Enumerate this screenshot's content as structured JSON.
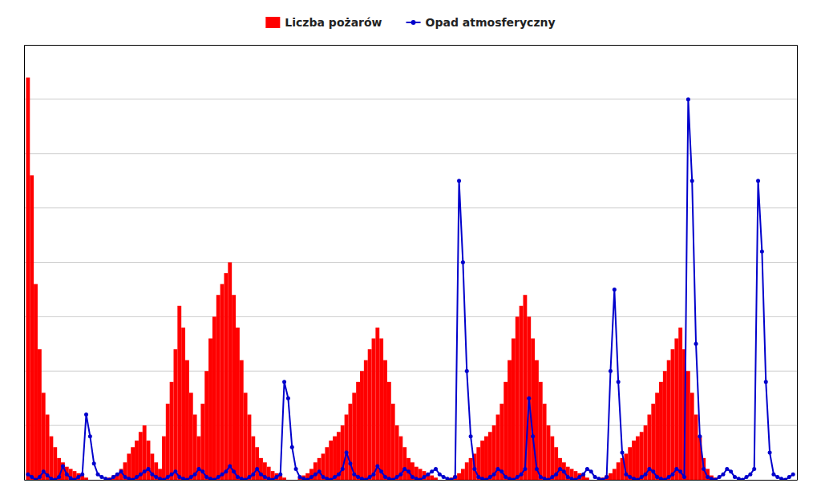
{
  "chart_data": {
    "type": "bar",
    "categories": [
      null,
      null,
      null,
      null,
      null,
      null,
      null,
      null,
      null,
      null,
      null,
      null,
      null,
      null,
      null,
      null,
      null,
      null,
      null,
      null,
      null,
      null,
      null,
      null,
      null,
      null,
      null,
      null,
      null,
      null,
      null,
      null,
      null,
      null,
      null,
      null,
      null,
      null,
      null,
      null,
      null,
      null,
      null,
      null,
      null,
      null,
      null,
      null,
      null,
      null,
      null,
      null,
      null,
      null,
      null,
      null,
      null,
      null,
      null,
      null,
      null,
      null,
      null,
      null,
      null,
      null,
      null,
      null,
      null,
      null,
      null,
      null,
      null,
      null,
      null,
      null,
      null,
      null,
      null,
      null,
      null,
      null,
      null,
      null,
      null,
      null,
      null,
      null,
      null,
      null,
      null,
      null,
      null,
      null,
      null,
      null,
      null,
      null,
      null,
      null,
      null,
      null,
      null,
      null,
      null,
      null,
      null,
      null,
      null,
      null,
      null,
      null,
      null,
      null,
      null,
      null,
      null,
      null,
      null,
      null,
      null,
      null,
      null,
      null,
      null,
      null,
      null,
      null,
      null,
      null,
      null,
      null,
      null,
      null,
      null,
      null,
      null,
      null,
      null,
      null,
      null,
      null,
      null,
      null,
      null,
      null,
      null,
      null,
      null,
      null,
      null,
      null,
      null,
      null,
      null,
      null,
      null,
      null,
      null,
      null,
      null,
      null,
      null,
      null,
      null,
      null,
      null,
      null,
      null,
      null,
      null,
      null,
      null,
      null,
      null,
      null,
      null,
      null,
      null,
      null,
      null,
      null,
      null,
      null,
      null,
      null,
      null,
      null,
      null,
      null,
      null,
      null,
      null,
      null,
      null,
      null,
      null,
      null
    ],
    "series": [
      {
        "name": "Liczba pożarów",
        "type": "bar",
        "color": "#ff0000",
        "values": [
          185,
          140,
          90,
          60,
          40,
          30,
          20,
          15,
          10,
          8,
          6,
          5,
          4,
          3,
          2,
          1,
          0,
          0,
          0,
          0,
          0,
          1,
          2,
          3,
          5,
          8,
          12,
          15,
          18,
          22,
          25,
          18,
          12,
          8,
          5,
          20,
          35,
          45,
          60,
          80,
          70,
          55,
          40,
          30,
          20,
          35,
          50,
          65,
          75,
          85,
          90,
          95,
          100,
          85,
          70,
          55,
          40,
          30,
          20,
          15,
          10,
          8,
          6,
          4,
          3,
          2,
          1,
          0,
          0,
          0,
          1,
          2,
          3,
          5,
          8,
          10,
          12,
          15,
          18,
          20,
          22,
          25,
          30,
          35,
          40,
          45,
          50,
          55,
          60,
          65,
          70,
          65,
          55,
          45,
          35,
          25,
          20,
          15,
          10,
          8,
          6,
          5,
          4,
          3,
          2,
          1,
          0,
          0,
          0,
          1,
          2,
          3,
          5,
          8,
          10,
          12,
          15,
          18,
          20,
          22,
          25,
          30,
          35,
          45,
          55,
          65,
          75,
          80,
          85,
          75,
          65,
          55,
          45,
          35,
          25,
          20,
          15,
          10,
          8,
          6,
          5,
          4,
          3,
          2,
          1,
          0,
          0,
          0,
          1,
          2,
          3,
          5,
          8,
          10,
          12,
          15,
          18,
          20,
          22,
          25,
          30,
          35,
          40,
          45,
          50,
          55,
          60,
          65,
          70,
          60,
          50,
          40,
          30,
          20,
          10,
          5,
          2,
          1,
          0,
          0,
          0,
          0,
          0,
          0,
          0,
          0,
          0,
          0,
          0,
          0,
          0,
          0,
          0,
          0,
          0,
          0,
          0,
          0
        ]
      },
      {
        "name": "Opad atmosferyczny",
        "type": "line",
        "axis": "y2",
        "color": "#0000cc",
        "marker": "circle",
        "values": [
          1.0,
          0.5,
          0.0,
          0.5,
          1.5,
          0.8,
          0.2,
          0.0,
          0.5,
          2.5,
          1.0,
          0.3,
          0.0,
          0.5,
          1.0,
          12.0,
          8.0,
          3.0,
          1.0,
          0.5,
          0.2,
          0.0,
          0.5,
          1.0,
          1.5,
          0.5,
          0.2,
          0.0,
          0.5,
          1.0,
          1.5,
          2.0,
          1.0,
          0.5,
          0.2,
          0.0,
          0.5,
          1.0,
          1.5,
          0.5,
          0.2,
          0.0,
          0.5,
          1.0,
          2.0,
          1.5,
          0.5,
          0.2,
          0.0,
          0.5,
          1.0,
          1.5,
          2.5,
          1.5,
          0.5,
          0.2,
          0.0,
          0.5,
          1.0,
          2.0,
          1.0,
          0.5,
          0.2,
          0.0,
          0.5,
          1.0,
          18.0,
          15.0,
          6.0,
          2.0,
          0.5,
          0.2,
          0.0,
          0.5,
          1.0,
          1.5,
          0.5,
          0.2,
          0.0,
          0.5,
          1.0,
          2.0,
          5.0,
          3.0,
          1.0,
          0.5,
          0.2,
          0.0,
          0.5,
          1.0,
          2.5,
          1.5,
          0.5,
          0.2,
          0.0,
          0.5,
          1.0,
          2.0,
          1.5,
          0.5,
          0.2,
          0.0,
          0.5,
          1.0,
          1.5,
          2.0,
          1.0,
          0.5,
          0.2,
          0.0,
          0.5,
          55.0,
          40.0,
          20.0,
          8.0,
          2.0,
          0.5,
          0.2,
          0.0,
          0.5,
          1.0,
          2.0,
          1.5,
          0.5,
          0.2,
          0.0,
          0.5,
          1.0,
          2.0,
          15.0,
          8.0,
          2.0,
          0.5,
          0.2,
          0.0,
          0.5,
          1.0,
          2.0,
          1.5,
          0.5,
          0.2,
          0.0,
          0.5,
          1.0,
          2.0,
          1.5,
          0.5,
          0.2,
          0.0,
          0.5,
          20.0,
          35.0,
          18.0,
          5.0,
          1.0,
          0.5,
          0.2,
          0.0,
          0.5,
          1.0,
          2.0,
          1.5,
          0.5,
          0.2,
          0.0,
          0.5,
          1.0,
          2.0,
          1.5,
          0.5,
          70.0,
          55.0,
          25.0,
          8.0,
          2.0,
          0.5,
          0.2,
          0.0,
          0.5,
          1.0,
          2.0,
          1.5,
          0.5,
          0.2,
          0.0,
          0.5,
          1.0,
          2.0,
          55.0,
          42.0,
          18.0,
          5.0,
          1.0,
          0.5,
          0.2,
          0.0,
          0.5,
          1.0
        ]
      }
    ],
    "ylim": [
      0,
      200
    ],
    "yticks": [
      25,
      50,
      75,
      100,
      125,
      150,
      175
    ],
    "y2lim": [
      0,
      80
    ],
    "grid": true,
    "tick_labels": false,
    "legend": "top"
  }
}
